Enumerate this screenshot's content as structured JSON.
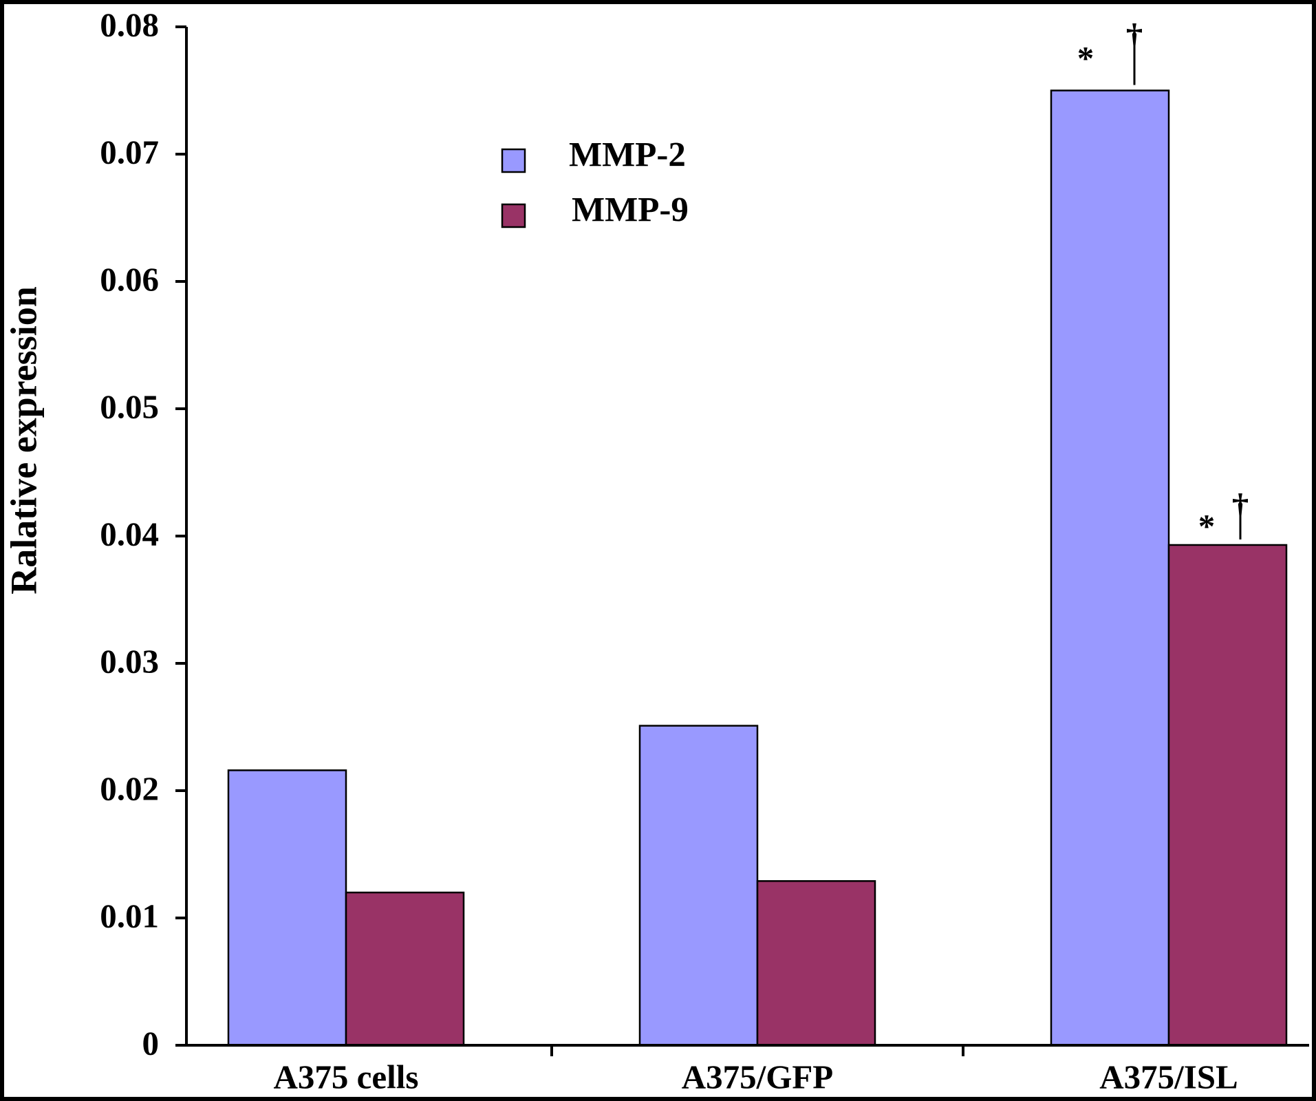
{
  "chart_data": {
    "type": "bar",
    "y_label": "Ralative expression",
    "categories": [
      "A375 cells",
      "A375/GFP",
      "A375/ISL"
    ],
    "series": [
      {
        "name": "MMP-2",
        "color": "#9999ff",
        "values": [
          0.0216,
          0.0251,
          0.075
        ]
      },
      {
        "name": "MMP-9",
        "color": "#993366",
        "values": [
          0.012,
          0.0129,
          0.0393
        ]
      }
    ],
    "annotations": [
      "*",
      "†"
    ],
    "ylim": [
      0,
      0.08
    ],
    "yticks": [
      0,
      0.01,
      0.02,
      0.03,
      0.04,
      0.05,
      0.06,
      0.07,
      0.08
    ],
    "grid": false
  }
}
